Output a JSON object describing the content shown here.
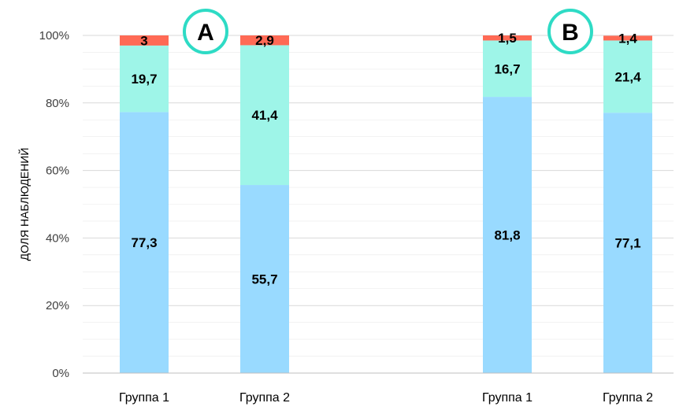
{
  "chart_data": {
    "type": "bar",
    "stacked": true,
    "title": "",
    "ylabel": "ДОЛЯ НАБЛЮДЕНИЙ",
    "ylim": [
      0,
      100
    ],
    "yticks": [
      "0%",
      "20%",
      "40%",
      "60%",
      "80%",
      "100%"
    ],
    "grid": true,
    "panels": [
      {
        "label": "A",
        "categories": [
          "Группа 1",
          "Группа 2"
        ],
        "series": [
          {
            "values": [
              77.3,
              55.7
            ],
            "labels": [
              "77,3",
              "55,7"
            ],
            "color": "#99DAFF"
          },
          {
            "values": [
              19.7,
              41.4
            ],
            "labels": [
              "19,7",
              "41,4"
            ],
            "color": "#9EF5E8"
          },
          {
            "values": [
              3.0,
              2.9
            ],
            "labels": [
              "3",
              "2,9"
            ],
            "color": "#FF6A55"
          }
        ]
      },
      {
        "label": "B",
        "categories": [
          "Группа 1",
          "Группа  2"
        ],
        "series": [
          {
            "values": [
              81.8,
              77.1
            ],
            "labels": [
              "81,8",
              "77,1"
            ],
            "color": "#99DAFF"
          },
          {
            "values": [
              16.7,
              21.4
            ],
            "labels": [
              "16,7",
              "21,4"
            ],
            "color": "#9EF5E8"
          },
          {
            "values": [
              1.5,
              1.4
            ],
            "labels": [
              "1,5",
              "1,4"
            ],
            "color": "#FF6A55"
          }
        ]
      }
    ],
    "badge_color": "#2EDBC5",
    "grid_color": "#D9D9D9",
    "axis_color": "#BFBFBF"
  }
}
